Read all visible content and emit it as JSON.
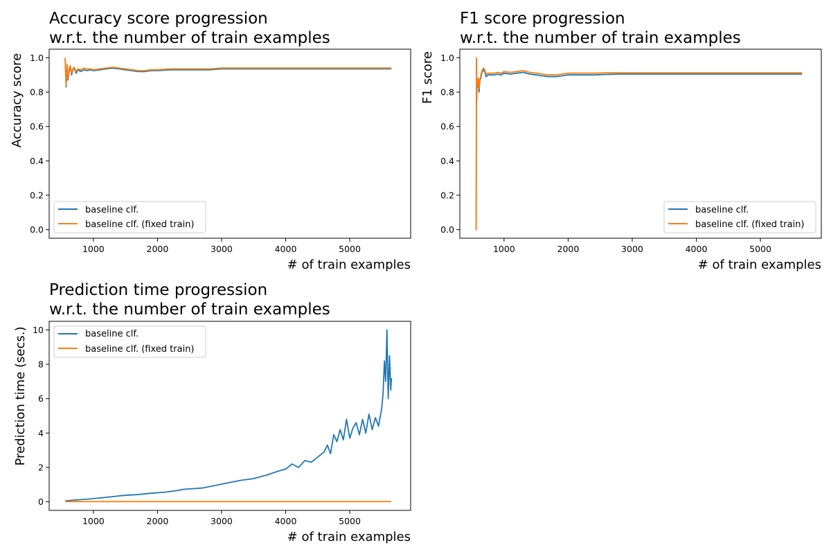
{
  "colors": {
    "series_0": "#1f77b4",
    "series_1": "#ff7f0e",
    "frame": "#000000",
    "legend_border": "#cccccc"
  },
  "chart_data": [
    {
      "type": "line",
      "title_lines": [
        "Accuracy score progression",
        "w.r.t. the number of train examples"
      ],
      "xlabel": "# of train examples",
      "ylabel": "Accuracy score",
      "xlim": [
        310,
        5950
      ],
      "ylim": [
        -0.05,
        1.05
      ],
      "xticks": [
        1000,
        2000,
        3000,
        4000,
        5000
      ],
      "yticks": [
        0.0,
        0.2,
        0.4,
        0.6,
        0.8,
        1.0
      ],
      "ytick_labels": [
        "0.0",
        "0.2",
        "0.4",
        "0.6",
        "0.8",
        "1.0"
      ],
      "grid": false,
      "legend_loc": "lower-left",
      "series": [
        {
          "name": "baseline clf.",
          "x": [
            560,
            575,
            590,
            605,
            620,
            640,
            660,
            680,
            700,
            730,
            760,
            800,
            850,
            900,
            950,
            1000,
            1100,
            1200,
            1300,
            1400,
            1500,
            1600,
            1700,
            1800,
            1900,
            2000,
            2200,
            2400,
            2600,
            2800,
            3000,
            3500,
            4000,
            4500,
            5000,
            5500,
            5650
          ],
          "y": [
            0.99,
            0.83,
            0.95,
            0.87,
            0.92,
            0.95,
            0.9,
            0.93,
            0.94,
            0.91,
            0.93,
            0.92,
            0.93,
            0.925,
            0.93,
            0.925,
            0.93,
            0.935,
            0.94,
            0.935,
            0.93,
            0.925,
            0.92,
            0.92,
            0.925,
            0.925,
            0.93,
            0.93,
            0.93,
            0.93,
            0.935,
            0.935,
            0.935,
            0.935,
            0.935,
            0.935,
            0.935
          ]
        },
        {
          "name": "baseline clf. (fixed train)",
          "x": [
            560,
            575,
            590,
            605,
            620,
            640,
            660,
            680,
            700,
            730,
            760,
            800,
            850,
            900,
            950,
            1000,
            1100,
            1200,
            1300,
            1400,
            1500,
            1600,
            1700,
            1800,
            1900,
            2000,
            2200,
            2400,
            2600,
            2800,
            3000,
            3500,
            4000,
            4500,
            5000,
            5500,
            5650
          ],
          "y": [
            1.0,
            0.84,
            0.96,
            0.88,
            0.93,
            0.955,
            0.91,
            0.935,
            0.945,
            0.92,
            0.935,
            0.93,
            0.94,
            0.935,
            0.935,
            0.93,
            0.935,
            0.94,
            0.945,
            0.94,
            0.935,
            0.93,
            0.925,
            0.925,
            0.93,
            0.93,
            0.935,
            0.935,
            0.935,
            0.935,
            0.94,
            0.94,
            0.94,
            0.94,
            0.94,
            0.94,
            0.94
          ]
        }
      ]
    },
    {
      "type": "line",
      "title_lines": [
        "F1 score progression",
        "w.r.t. the number of train examples"
      ],
      "xlabel": "# of train examples",
      "ylabel": "F1 score",
      "xlim": [
        310,
        5950
      ],
      "ylim": [
        -0.05,
        1.05
      ],
      "xticks": [
        1000,
        2000,
        3000,
        4000,
        5000
      ],
      "yticks": [
        0.0,
        0.2,
        0.4,
        0.6,
        0.8,
        1.0
      ],
      "ytick_labels": [
        "0.0",
        "0.2",
        "0.4",
        "0.6",
        "0.8",
        "1.0"
      ],
      "grid": false,
      "legend_loc": "lower-right",
      "series": [
        {
          "name": "baseline clf.",
          "x": [
            560,
            565,
            570,
            575,
            580,
            590,
            600,
            610,
            620,
            640,
            660,
            680,
            700,
            720,
            750,
            800,
            850,
            900,
            950,
            1000,
            1100,
            1200,
            1300,
            1400,
            1500,
            1600,
            1700,
            1800,
            1900,
            2000,
            2200,
            2400,
            2600,
            2800,
            3000,
            3500,
            4000,
            4500,
            5000,
            5500,
            5650
          ],
          "y": [
            0.0,
            0.0,
            0.99,
            0.75,
            0.87,
            0.83,
            0.87,
            0.8,
            0.86,
            0.89,
            0.92,
            0.93,
            0.92,
            0.89,
            0.9,
            0.9,
            0.9,
            0.905,
            0.9,
            0.91,
            0.905,
            0.91,
            0.915,
            0.905,
            0.9,
            0.895,
            0.89,
            0.89,
            0.895,
            0.9,
            0.9,
            0.9,
            0.903,
            0.905,
            0.905,
            0.905,
            0.905,
            0.905,
            0.905,
            0.905,
            0.905
          ]
        },
        {
          "name": "baseline clf. (fixed train)",
          "x": [
            560,
            565,
            570,
            575,
            580,
            590,
            600,
            610,
            620,
            640,
            660,
            680,
            700,
            720,
            750,
            800,
            850,
            900,
            950,
            1000,
            1100,
            1200,
            1300,
            1400,
            1500,
            1600,
            1700,
            1800,
            1900,
            2000,
            2200,
            2400,
            2600,
            2800,
            3000,
            3500,
            4000,
            4500,
            5000,
            5500,
            5650
          ],
          "y": [
            0.0,
            0.0,
            1.0,
            0.76,
            0.88,
            0.84,
            0.88,
            0.82,
            0.87,
            0.9,
            0.93,
            0.94,
            0.93,
            0.905,
            0.91,
            0.91,
            0.91,
            0.915,
            0.91,
            0.92,
            0.915,
            0.92,
            0.925,
            0.915,
            0.91,
            0.905,
            0.9,
            0.9,
            0.905,
            0.91,
            0.91,
            0.91,
            0.912,
            0.912,
            0.912,
            0.912,
            0.912,
            0.912,
            0.912,
            0.912,
            0.912
          ]
        }
      ]
    },
    {
      "type": "line",
      "title_lines": [
        "Prediction time progression",
        "w.r.t. the number of train examples"
      ],
      "xlabel": "# of train examples",
      "ylabel": "Prediction time (secs.)",
      "xlim": [
        310,
        5950
      ],
      "ylim": [
        -0.5,
        10.5
      ],
      "xticks": [
        1000,
        2000,
        3000,
        4000,
        5000
      ],
      "yticks": [
        0,
        2,
        4,
        6,
        8,
        10
      ],
      "ytick_labels": [
        "0",
        "2",
        "4",
        "6",
        "8",
        "10"
      ],
      "grid": false,
      "legend_loc": "upper-left",
      "series": [
        {
          "name": "baseline clf.",
          "x": [
            560,
            700,
            900,
            1100,
            1300,
            1500,
            1700,
            1900,
            2100,
            2300,
            2400,
            2500,
            2700,
            2900,
            3100,
            3300,
            3500,
            3700,
            3900,
            4000,
            4100,
            4200,
            4300,
            4400,
            4500,
            4600,
            4650,
            4700,
            4750,
            4800,
            4850,
            4900,
            4950,
            5000,
            5050,
            5100,
            5150,
            5200,
            5250,
            5300,
            5350,
            5400,
            5450,
            5500,
            5520,
            5540,
            5560,
            5580,
            5600,
            5620,
            5640,
            5650
          ],
          "y": [
            0.05,
            0.1,
            0.15,
            0.22,
            0.3,
            0.38,
            0.42,
            0.5,
            0.55,
            0.65,
            0.72,
            0.75,
            0.8,
            0.95,
            1.1,
            1.25,
            1.35,
            1.55,
            1.8,
            1.9,
            2.2,
            2.0,
            2.4,
            2.3,
            2.6,
            2.9,
            3.3,
            2.8,
            3.9,
            3.5,
            4.2,
            3.6,
            4.8,
            3.7,
            4.3,
            4.6,
            3.9,
            4.8,
            4.0,
            5.1,
            4.2,
            4.9,
            4.4,
            5.5,
            6.3,
            8.2,
            7.0,
            10.0,
            6.0,
            8.5,
            6.5,
            7.2
          ]
        },
        {
          "name": "baseline clf. (fixed train)",
          "x": [
            560,
            5650
          ],
          "y": [
            0.01,
            0.01
          ]
        }
      ]
    }
  ]
}
